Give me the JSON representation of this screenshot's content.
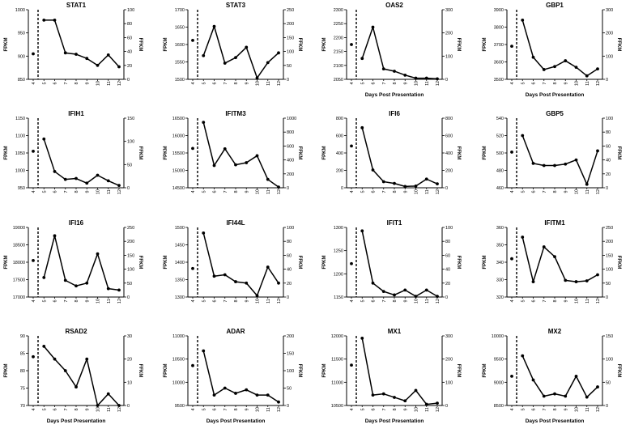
{
  "figure": {
    "xlabel": "Days Post Presentation",
    "left_ylabel": "FPKM",
    "right_ylabel": "FFKM"
  },
  "chart_data": [
    {
      "type": "line",
      "title": "STAT1",
      "xlabel": "",
      "ylabel": "FPKM",
      "y2label": "FFKM",
      "xticks": [
        "4",
        "5",
        "6",
        "7",
        "8",
        "9",
        "10",
        "11",
        "12"
      ],
      "ylim": [
        850,
        1000
      ],
      "yticks": [
        "850",
        "900",
        "950",
        "1000"
      ],
      "y2lim": [
        0,
        100
      ],
      "y2ticks": [
        "0",
        "20",
        "40",
        "60",
        "80",
        "100"
      ],
      "baseline": {
        "x": 4,
        "y": 905
      },
      "series": [
        {
          "x": [
            5,
            6,
            7,
            8,
            9,
            10,
            11,
            12
          ],
          "y": [
            85,
            85,
            38,
            36,
            30,
            20,
            35,
            18
          ]
        }
      ]
    },
    {
      "type": "line",
      "title": "STAT3",
      "xlabel": "",
      "ylabel": "FPKM",
      "y2label": "FFKM",
      "xticks": [
        "4",
        "5",
        "6",
        "7",
        "8",
        "9",
        "10",
        "11",
        "12"
      ],
      "ylim": [
        1500,
        1700
      ],
      "yticks": [
        "1500",
        "1550",
        "1600",
        "1650",
        "1700"
      ],
      "y2lim": [
        0,
        250
      ],
      "y2ticks": [
        "0",
        "50",
        "100",
        "150",
        "200",
        "250"
      ],
      "baseline": {
        "x": 4,
        "y": 1612
      },
      "series": [
        {
          "x": [
            5,
            6,
            7,
            8,
            9,
            10,
            11,
            12
          ],
          "y": [
            85,
            190,
            58,
            78,
            115,
            5,
            60,
            95
          ]
        }
      ]
    },
    {
      "type": "line",
      "title": "OAS2",
      "xlabel": "Days Post Presentation",
      "ylabel": "FPKM",
      "y2label": "FFKM",
      "xticks": [
        "4",
        "5",
        "6",
        "7",
        "8",
        "9",
        "10",
        "11",
        "12"
      ],
      "ylim": [
        2050,
        2300
      ],
      "yticks": [
        "2050",
        "2100",
        "2150",
        "2200",
        "2250",
        "2300"
      ],
      "y2lim": [
        0,
        300
      ],
      "y2ticks": [
        "0",
        "100",
        "200",
        "300"
      ],
      "baseline": {
        "x": 4,
        "y": 2175
      },
      "series": [
        {
          "x": [
            5,
            6,
            7,
            8,
            9,
            10,
            11,
            12
          ],
          "y": [
            90,
            225,
            45,
            35,
            18,
            5,
            5,
            2
          ]
        }
      ]
    },
    {
      "type": "line",
      "title": "GBP1",
      "xlabel": "Days Post Presentation",
      "ylabel": "FPKM",
      "y2label": "FFKM",
      "xticks": [
        "4",
        "5",
        "6",
        "7",
        "8",
        "9",
        "10",
        "11",
        "12"
      ],
      "ylim": [
        3500,
        3900
      ],
      "yticks": [
        "3500",
        "3600",
        "3700",
        "3800",
        "3900"
      ],
      "y2lim": [
        0,
        300
      ],
      "y2ticks": [
        "0",
        "100",
        "200",
        "300"
      ],
      "baseline": {
        "x": 4,
        "y": 3690
      },
      "series": [
        {
          "x": [
            5,
            6,
            7,
            8,
            9,
            10,
            11,
            12
          ],
          "y": [
            255,
            95,
            42,
            55,
            80,
            52,
            15,
            45
          ]
        }
      ]
    },
    {
      "type": "line",
      "title": "IFIH1",
      "xlabel": "",
      "ylabel": "FPKM",
      "y2label": "FFKM",
      "xticks": [
        "4",
        "5",
        "6",
        "7",
        "8",
        "9",
        "10",
        "11",
        "12"
      ],
      "ylim": [
        950,
        1150
      ],
      "yticks": [
        "950",
        "1000",
        "1050",
        "1100",
        "1150"
      ],
      "y2lim": [
        0,
        150
      ],
      "y2ticks": [
        "0",
        "50",
        "100",
        "150"
      ],
      "baseline": {
        "x": 4,
        "y": 1055
      },
      "series": [
        {
          "x": [
            5,
            6,
            7,
            8,
            9,
            10,
            11,
            12
          ],
          "y": [
            105,
            35,
            18,
            20,
            10,
            27,
            15,
            5
          ]
        }
      ]
    },
    {
      "type": "line",
      "title": "IFITM3",
      "xlabel": "",
      "ylabel": "FPKM",
      "y2label": "FFKM",
      "xticks": [
        "4",
        "5",
        "6",
        "7",
        "8",
        "9",
        "10",
        "11",
        "12"
      ],
      "ylim": [
        14500,
        16500
      ],
      "yticks": [
        "14500",
        "15000",
        "15500",
        "16000",
        "16500"
      ],
      "y2lim": [
        0,
        1000
      ],
      "y2ticks": [
        "0",
        "200",
        "400",
        "600",
        "800",
        "1000"
      ],
      "baseline": {
        "x": 4,
        "y": 15630
      },
      "series": [
        {
          "x": [
            5,
            6,
            7,
            8,
            9,
            10,
            11,
            12
          ],
          "y": [
            940,
            320,
            560,
            330,
            360,
            460,
            120,
            10
          ]
        }
      ]
    },
    {
      "type": "line",
      "title": "IFI6",
      "xlabel": "",
      "ylabel": "FPKM",
      "y2label": "FFKM",
      "xticks": [
        "4",
        "5",
        "6",
        "7",
        "8",
        "9",
        "10",
        "11",
        "12"
      ],
      "ylim": [
        0,
        800
      ],
      "yticks": [
        "0",
        "200",
        "400",
        "600",
        "800"
      ],
      "y2lim": [
        0,
        800
      ],
      "y2ticks": [
        "0",
        "200",
        "400",
        "600",
        "800"
      ],
      "baseline": {
        "x": 4,
        "y": 480
      },
      "series": [
        {
          "x": [
            5,
            6,
            7,
            8,
            9,
            10,
            11,
            12
          ],
          "y": [
            690,
            205,
            70,
            50,
            15,
            20,
            100,
            45
          ]
        }
      ]
    },
    {
      "type": "line",
      "title": "GBP5",
      "xlabel": "",
      "ylabel": "FPKM",
      "y2label": "FFKM",
      "xticks": [
        "4",
        "5",
        "6",
        "7",
        "8",
        "9",
        "10",
        "11",
        "12"
      ],
      "ylim": [
        460,
        540
      ],
      "yticks": [
        "460",
        "480",
        "500",
        "520",
        "540"
      ],
      "y2lim": [
        0,
        100
      ],
      "y2ticks": [
        "0",
        "20",
        "40",
        "60",
        "80",
        "100"
      ],
      "baseline": {
        "x": 4,
        "y": 501
      },
      "series": [
        {
          "x": [
            5,
            6,
            7,
            8,
            9,
            10,
            11,
            12
          ],
          "y": [
            75,
            35,
            32,
            32,
            34,
            40,
            5,
            53
          ]
        }
      ]
    },
    {
      "type": "line",
      "title": "IFI16",
      "xlabel": "",
      "ylabel": "FPKM",
      "y2label": "FFKM",
      "xticks": [
        "4",
        "5",
        "6",
        "7",
        "8",
        "9",
        "10",
        "11",
        "12"
      ],
      "ylim": [
        17000,
        19000
      ],
      "yticks": [
        "17000",
        "17500",
        "18000",
        "18500",
        "19000"
      ],
      "y2lim": [
        0,
        250
      ],
      "y2ticks": [
        "0",
        "50",
        "100",
        "150",
        "200",
        "250"
      ],
      "baseline": {
        "x": 4,
        "y": 18050
      },
      "series": [
        {
          "x": [
            5,
            6,
            7,
            8,
            9,
            10,
            11,
            12
          ],
          "y": [
            70,
            220,
            60,
            40,
            50,
            155,
            30,
            25
          ]
        }
      ]
    },
    {
      "type": "line",
      "title": "IFI44L",
      "xlabel": "",
      "ylabel": "FPKM",
      "y2label": "FFKM",
      "xticks": [
        "4",
        "5",
        "6",
        "7",
        "8",
        "9",
        "10",
        "11",
        "12"
      ],
      "ylim": [
        1300,
        1500
      ],
      "yticks": [
        "1300",
        "1350",
        "1400",
        "1450",
        "1500"
      ],
      "y2lim": [
        0,
        100
      ],
      "y2ticks": [
        "0",
        "20",
        "40",
        "60",
        "80",
        "100"
      ],
      "baseline": {
        "x": 4,
        "y": 1382
      },
      "series": [
        {
          "x": [
            5,
            6,
            7,
            8,
            9,
            10,
            11,
            12
          ],
          "y": [
            92,
            30,
            32,
            22,
            20,
            2,
            43,
            20
          ]
        }
      ]
    },
    {
      "type": "line",
      "title": "IFIT1",
      "xlabel": "",
      "ylabel": "FPKM",
      "y2label": "FFKM",
      "xticks": [
        "4",
        "5",
        "6",
        "7",
        "8",
        "9",
        "10",
        "11",
        "12"
      ],
      "ylim": [
        1150,
        1300
      ],
      "yticks": [
        "1150",
        "1200",
        "1250",
        "1300"
      ],
      "y2lim": [
        0,
        100
      ],
      "y2ticks": [
        "0",
        "20",
        "40",
        "60",
        "80",
        "100"
      ],
      "baseline": {
        "x": 4,
        "y": 1222
      },
      "series": [
        {
          "x": [
            5,
            6,
            7,
            8,
            9,
            10,
            11,
            12
          ],
          "y": [
            95,
            20,
            8,
            3,
            10,
            1,
            10,
            1
          ]
        }
      ]
    },
    {
      "type": "line",
      "title": "IFITM1",
      "xlabel": "",
      "ylabel": "FPKM",
      "y2label": "FFKM",
      "xticks": [
        "4",
        "5",
        "6",
        "7",
        "8",
        "9",
        "10",
        "11",
        "12"
      ],
      "ylim": [
        320,
        360
      ],
      "yticks": [
        "320",
        "330",
        "340",
        "350",
        "360"
      ],
      "y2lim": [
        0,
        250
      ],
      "y2ticks": [
        "0",
        "50",
        "100",
        "150",
        "200",
        "250"
      ],
      "baseline": {
        "x": 4,
        "y": 342
      },
      "series": [
        {
          "x": [
            5,
            6,
            7,
            8,
            9,
            10,
            11,
            12
          ],
          "y": [
            215,
            55,
            180,
            145,
            60,
            55,
            58,
            80
          ]
        }
      ]
    },
    {
      "type": "line",
      "title": "RSAD2",
      "xlabel": "",
      "ylabel": "FPKM",
      "y2label": "FFKM",
      "xticks": [
        "4",
        "5",
        "6",
        "7",
        "8",
        "9",
        "10",
        "11",
        "12"
      ],
      "ylim": [
        70,
        90
      ],
      "yticks": [
        "70",
        "75",
        "80",
        "85",
        "90"
      ],
      "y2lim": [
        0,
        30
      ],
      "y2ticks": [
        "0",
        "10",
        "20",
        "30"
      ],
      "baseline": {
        "x": 4,
        "y": 84
      },
      "series": [
        {
          "x": [
            5,
            6,
            7,
            8,
            9,
            10,
            11,
            12
          ],
          "y": [
            25.5,
            20,
            15,
            8,
            20,
            0,
            5,
            0
          ]
        }
      ]
    },
    {
      "type": "line",
      "title": "ADAR",
      "xlabel": "",
      "ylabel": "FPKM",
      "y2label": "FFKM",
      "xticks": [
        "4",
        "5",
        "6",
        "7",
        "8",
        "9",
        "10",
        "11",
        "12"
      ],
      "ylim": [
        9500,
        11000
      ],
      "yticks": [
        "9500",
        "10000",
        "10500",
        "11000"
      ],
      "y2lim": [
        0,
        200
      ],
      "y2ticks": [
        "0",
        "50",
        "100",
        "150",
        "200"
      ],
      "baseline": {
        "x": 4,
        "y": 10360
      },
      "series": [
        {
          "x": [
            5,
            6,
            7,
            8,
            9,
            10,
            11,
            12
          ],
          "y": [
            157,
            30,
            50,
            35,
            45,
            30,
            30,
            10
          ]
        }
      ]
    },
    {
      "type": "line",
      "title": "MX1",
      "xlabel": "",
      "ylabel": "FPKM",
      "y2label": "FFKM",
      "xticks": [
        "4",
        "5",
        "6",
        "7",
        "8",
        "9",
        "10",
        "11",
        "12"
      ],
      "ylim": [
        10500,
        12000
      ],
      "yticks": [
        "10500",
        "11000",
        "11500",
        "12000"
      ],
      "y2lim": [
        0,
        300
      ],
      "y2ticks": [
        "0",
        "100",
        "200",
        "300"
      ],
      "baseline": {
        "x": 4,
        "y": 11370
      },
      "series": [
        {
          "x": [
            5,
            6,
            7,
            8,
            9,
            10,
            11,
            12
          ],
          "y": [
            290,
            45,
            50,
            35,
            20,
            65,
            5,
            10
          ]
        }
      ]
    },
    {
      "type": "line",
      "title": "MX2",
      "xlabel": "",
      "ylabel": "FPKM",
      "y2label": "FFKM",
      "xticks": [
        "4",
        "5",
        "6",
        "7",
        "8",
        "9",
        "10",
        "11",
        "12"
      ],
      "ylim": [
        8500,
        10000
      ],
      "yticks": [
        "8500",
        "9000",
        "9500",
        "10000"
      ],
      "y2lim": [
        0,
        150
      ],
      "y2ticks": [
        "0",
        "50",
        "100",
        "150"
      ],
      "baseline": {
        "x": 4,
        "y": 9130
      },
      "series": [
        {
          "x": [
            5,
            6,
            7,
            8,
            9,
            10,
            11,
            12
          ],
          "y": [
            107,
            55,
            20,
            25,
            20,
            63,
            18,
            40
          ]
        }
      ]
    }
  ]
}
